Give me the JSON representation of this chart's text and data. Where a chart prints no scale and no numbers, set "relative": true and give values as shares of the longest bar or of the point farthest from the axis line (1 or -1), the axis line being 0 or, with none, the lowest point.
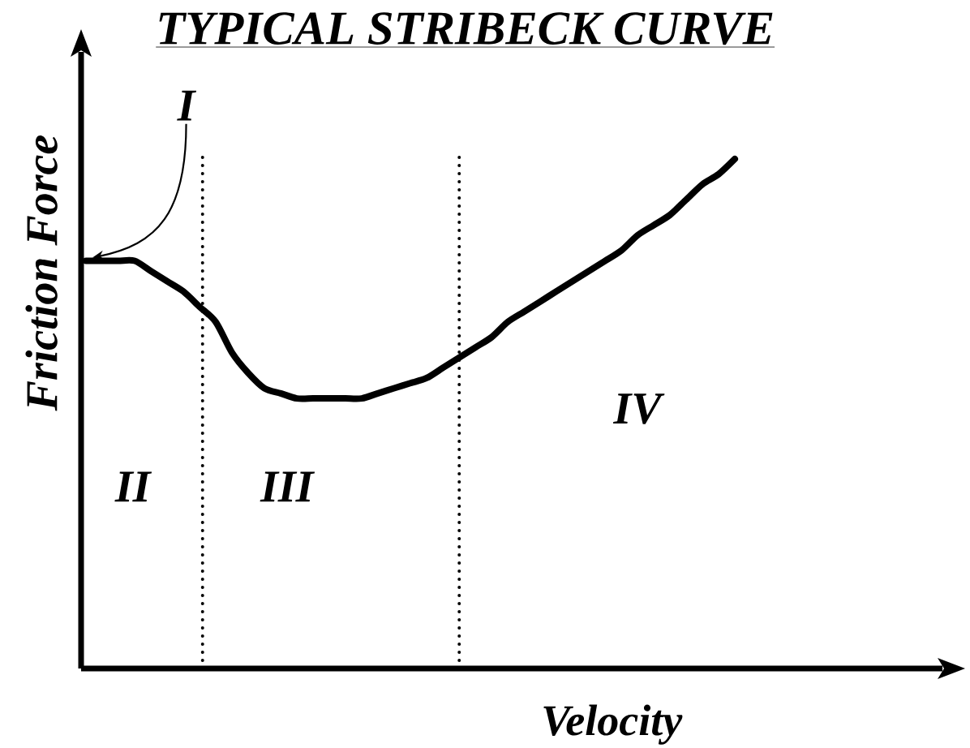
{
  "chart_data": {
    "type": "line",
    "title": "TYPICAL STRIBECK CURVE",
    "xlabel": "Velocity",
    "ylabel": "Friction Force",
    "categories": [
      null,
      null,
      null,
      null,
      null,
      null,
      null,
      null,
      null,
      null,
      null,
      null,
      null,
      null,
      null,
      null,
      null,
      null,
      null,
      null,
      null,
      null,
      null,
      null,
      null,
      null,
      null,
      null,
      null,
      null,
      null,
      null,
      null,
      null,
      null,
      null,
      null,
      null,
      null,
      null,
      null
    ],
    "values": [
      0.8,
      0.8,
      0.8,
      0.8,
      0.78,
      0.76,
      0.74,
      0.71,
      0.68,
      0.62,
      0.58,
      0.55,
      0.54,
      0.53,
      0.53,
      0.53,
      0.53,
      0.53,
      0.54,
      0.55,
      0.56,
      0.57,
      0.59,
      0.61,
      0.63,
      0.65,
      0.68,
      0.7,
      0.72,
      0.74,
      0.76,
      0.78,
      0.8,
      0.82,
      0.85,
      0.87,
      0.89,
      0.92,
      0.95,
      0.97,
      1
    ],
    "color": "#000000",
    "relative": true,
    "line_style": "solid",
    "marker": "none",
    "annotations": [
      "I",
      "II",
      "III",
      "IV"
    ]
  }
}
